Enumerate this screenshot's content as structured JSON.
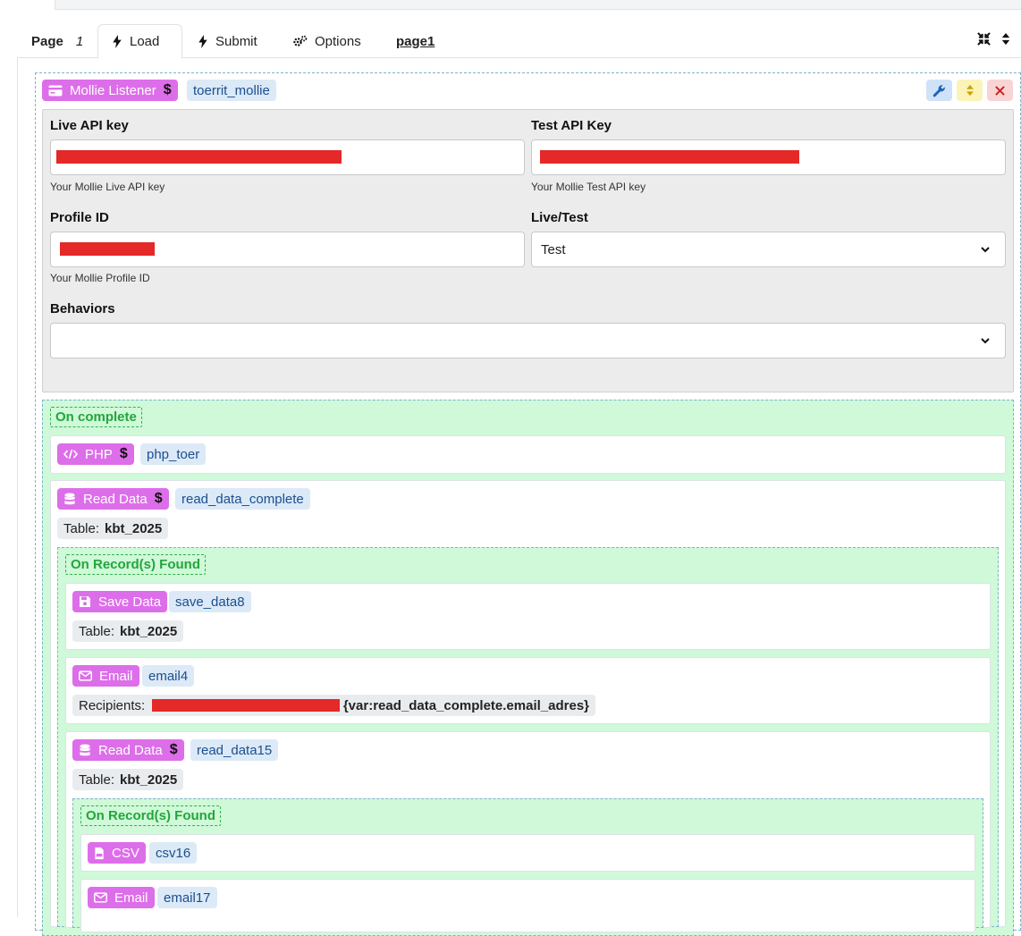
{
  "tabs": {
    "page_label": "Page",
    "page_number": "1",
    "load": "Load",
    "submit": "Submit",
    "options": "Options",
    "page_name": "page1"
  },
  "listener": {
    "title": "Mollie Listener",
    "name": "toerrit_mollie",
    "fields": {
      "live_label": "Live API key",
      "live_help": "Your Mollie Live API key",
      "test_label": "Test API Key",
      "test_help": "Your Mollie Test API key",
      "profile_label": "Profile ID",
      "profile_help": "Your Mollie Profile ID",
      "mode_label": "Live/Test",
      "mode_value": "Test",
      "behaviors_label": "Behaviors",
      "behaviors_value": ""
    }
  },
  "on_complete": {
    "label": "On complete",
    "php": {
      "title": "PHP",
      "name": "php_toer"
    },
    "read_data": {
      "title": "Read Data",
      "name": "read_data_complete",
      "table_label": "Table:",
      "table_value": "kbt_2025",
      "found": {
        "label": "On Record(s) Found",
        "save": {
          "title": "Save Data",
          "name": "save_data8",
          "table_label": "Table:",
          "table_value": "kbt_2025"
        },
        "email": {
          "title": "Email",
          "name": "email4",
          "recipients_label": "Recipients:",
          "recipients_var": "{var:read_data_complete.email_adres}"
        },
        "read_data2": {
          "title": "Read Data",
          "name": "read_data15",
          "table_label": "Table:",
          "table_value": "kbt_2025",
          "found": {
            "label": "On Record(s) Found",
            "csv": {
              "title": "CSV",
              "name": "csv16"
            },
            "email": {
              "title": "Email",
              "name": "email17"
            }
          }
        }
      }
    }
  },
  "colors": {
    "action_badge": "#dd6ee9",
    "name_badge": "#dce9f7",
    "event_bg": "#cff9d8",
    "event_label": "#24a53c",
    "redaction": "#e52828"
  }
}
